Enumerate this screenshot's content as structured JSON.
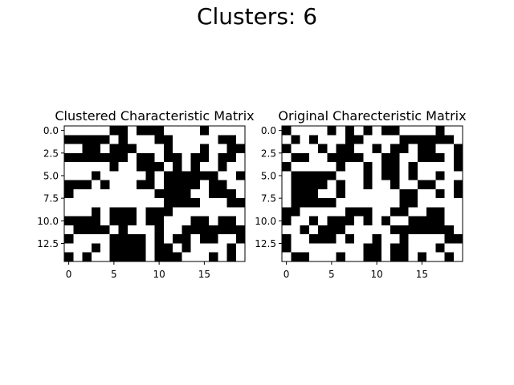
{
  "figure": {
    "title": "Clusters: 6"
  },
  "chart_data": [
    {
      "type": "heatmap",
      "title": "Clustered Characteristic Matrix",
      "xlabel": "",
      "ylabel": "",
      "colormap": {
        "0": "#ffffff",
        "1": "#000000"
      },
      "xlim": [
        -0.5,
        19.5
      ],
      "ylim": [
        14.5,
        -0.5
      ],
      "xticks": [
        0,
        5,
        10,
        15
      ],
      "xtick_labels": [
        "0",
        "5",
        "10",
        "15"
      ],
      "yticks": [
        0,
        2.5,
        5,
        7.5,
        10,
        12.5
      ],
      "ytick_labels": [
        "0.0",
        "2.5",
        "5.0",
        "7.5",
        "10.0",
        "12.5"
      ],
      "grid": false,
      "matrix": [
        [
          0,
          0,
          0,
          0,
          0,
          1,
          1,
          0,
          1,
          1,
          1,
          0,
          0,
          0,
          0,
          1,
          0,
          0,
          0,
          0
        ],
        [
          1,
          1,
          1,
          1,
          1,
          0,
          1,
          0,
          0,
          0,
          1,
          1,
          0,
          0,
          0,
          0,
          0,
          1,
          1,
          0
        ],
        [
          0,
          0,
          1,
          1,
          0,
          1,
          1,
          1,
          0,
          0,
          0,
          1,
          0,
          0,
          0,
          1,
          0,
          0,
          1,
          1
        ],
        [
          1,
          1,
          1,
          1,
          1,
          1,
          1,
          0,
          1,
          1,
          0,
          1,
          1,
          0,
          1,
          1,
          0,
          1,
          1,
          0
        ],
        [
          0,
          0,
          0,
          0,
          0,
          1,
          0,
          0,
          1,
          1,
          1,
          0,
          1,
          0,
          1,
          0,
          0,
          1,
          0,
          0
        ],
        [
          0,
          0,
          0,
          1,
          0,
          0,
          0,
          0,
          0,
          1,
          0,
          1,
          1,
          1,
          1,
          1,
          1,
          0,
          0,
          1
        ],
        [
          1,
          1,
          1,
          0,
          1,
          0,
          0,
          0,
          1,
          1,
          0,
          1,
          1,
          1,
          1,
          0,
          1,
          1,
          0,
          0
        ],
        [
          1,
          0,
          0,
          0,
          0,
          0,
          0,
          0,
          0,
          0,
          1,
          1,
          1,
          1,
          0,
          0,
          1,
          1,
          1,
          0
        ],
        [
          0,
          0,
          0,
          0,
          0,
          0,
          0,
          0,
          0,
          0,
          0,
          1,
          1,
          1,
          1,
          0,
          0,
          0,
          1,
          1
        ],
        [
          0,
          0,
          0,
          1,
          0,
          1,
          1,
          1,
          0,
          1,
          1,
          1,
          0,
          0,
          0,
          0,
          0,
          0,
          0,
          0
        ],
        [
          1,
          1,
          1,
          1,
          0,
          1,
          1,
          1,
          0,
          1,
          1,
          0,
          0,
          0,
          1,
          1,
          0,
          1,
          1,
          0
        ],
        [
          0,
          1,
          1,
          1,
          1,
          0,
          1,
          0,
          0,
          0,
          1,
          0,
          0,
          1,
          1,
          1,
          1,
          1,
          1,
          1
        ],
        [
          1,
          0,
          0,
          0,
          0,
          1,
          1,
          1,
          1,
          0,
          1,
          0,
          1,
          1,
          0,
          1,
          1,
          0,
          0,
          1
        ],
        [
          0,
          0,
          0,
          1,
          0,
          1,
          1,
          1,
          1,
          0,
          1,
          1,
          0,
          1,
          0,
          0,
          0,
          0,
          1,
          0
        ],
        [
          1,
          0,
          1,
          0,
          0,
          1,
          1,
          1,
          1,
          0,
          1,
          1,
          1,
          0,
          0,
          0,
          1,
          0,
          1,
          0
        ]
      ]
    },
    {
      "type": "heatmap",
      "title": "Original Charecteristic Matrix",
      "xlabel": "",
      "ylabel": "",
      "colormap": {
        "0": "#ffffff",
        "1": "#000000"
      },
      "xlim": [
        -0.5,
        19.5
      ],
      "ylim": [
        14.5,
        -0.5
      ],
      "xticks": [
        0,
        5,
        10,
        15
      ],
      "xtick_labels": [
        "0",
        "5",
        "10",
        "15"
      ],
      "yticks": [
        0,
        2.5,
        5,
        7.5,
        10,
        12.5
      ],
      "ytick_labels": [
        "0.0",
        "2.5",
        "5.0",
        "7.5",
        "10.0",
        "12.5"
      ],
      "grid": false,
      "matrix": [
        [
          1,
          0,
          0,
          0,
          0,
          1,
          0,
          1,
          0,
          1,
          0,
          1,
          1,
          0,
          0,
          0,
          0,
          1,
          0,
          0
        ],
        [
          0,
          1,
          0,
          1,
          0,
          0,
          0,
          1,
          1,
          0,
          0,
          0,
          0,
          1,
          1,
          1,
          1,
          1,
          1,
          0
        ],
        [
          1,
          0,
          0,
          0,
          1,
          0,
          1,
          1,
          0,
          0,
          1,
          0,
          1,
          1,
          0,
          1,
          1,
          0,
          0,
          1
        ],
        [
          0,
          1,
          1,
          0,
          0,
          1,
          1,
          1,
          1,
          0,
          0,
          1,
          1,
          0,
          0,
          1,
          1,
          1,
          0,
          1
        ],
        [
          1,
          0,
          0,
          0,
          0,
          0,
          1,
          0,
          0,
          1,
          0,
          1,
          1,
          0,
          1,
          0,
          0,
          0,
          0,
          1
        ],
        [
          0,
          1,
          1,
          1,
          1,
          1,
          0,
          0,
          0,
          1,
          0,
          1,
          1,
          0,
          1,
          0,
          0,
          1,
          0,
          0
        ],
        [
          0,
          1,
          1,
          1,
          1,
          0,
          1,
          0,
          0,
          1,
          0,
          0,
          1,
          0,
          0,
          1,
          1,
          0,
          0,
          1
        ],
        [
          0,
          1,
          1,
          1,
          0,
          0,
          1,
          0,
          0,
          0,
          0,
          0,
          0,
          1,
          1,
          0,
          0,
          1,
          0,
          1
        ],
        [
          0,
          1,
          1,
          1,
          1,
          1,
          0,
          0,
          0,
          0,
          0,
          0,
          0,
          1,
          1,
          0,
          0,
          0,
          0,
          0
        ],
        [
          1,
          1,
          0,
          0,
          0,
          0,
          0,
          1,
          1,
          1,
          0,
          0,
          1,
          1,
          0,
          0,
          1,
          1,
          0,
          0
        ],
        [
          1,
          0,
          0,
          1,
          0,
          1,
          1,
          1,
          0,
          1,
          0,
          1,
          0,
          0,
          1,
          1,
          1,
          1,
          0,
          0
        ],
        [
          0,
          0,
          1,
          0,
          1,
          1,
          1,
          0,
          0,
          0,
          0,
          0,
          1,
          1,
          1,
          1,
          1,
          1,
          1,
          0
        ],
        [
          1,
          0,
          0,
          1,
          1,
          1,
          0,
          1,
          0,
          0,
          1,
          0,
          0,
          1,
          0,
          0,
          0,
          0,
          1,
          1
        ],
        [
          1,
          0,
          0,
          0,
          0,
          0,
          0,
          0,
          0,
          1,
          1,
          0,
          1,
          1,
          0,
          0,
          0,
          1,
          0,
          0
        ],
        [
          0,
          1,
          1,
          0,
          0,
          0,
          1,
          0,
          0,
          1,
          1,
          0,
          1,
          1,
          0,
          1,
          0,
          0,
          1,
          0
        ]
      ]
    }
  ]
}
